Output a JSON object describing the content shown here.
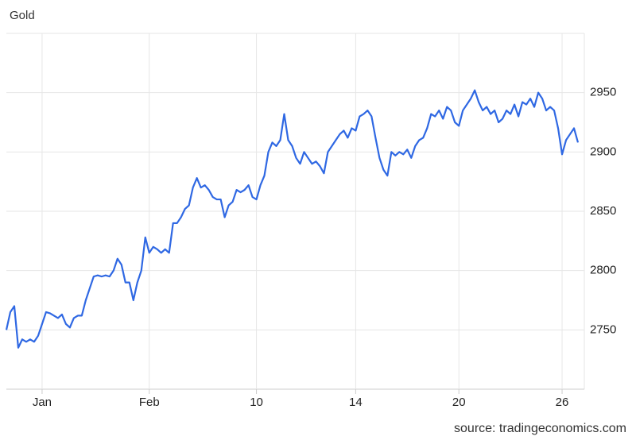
{
  "chart_data": {
    "type": "line",
    "title": "Gold",
    "source": "source: tradingeconomics.com",
    "color": "#2f68e3",
    "grid": true,
    "ylim": [
      2700,
      3000
    ],
    "yticks": [
      2750,
      2800,
      2850,
      2900,
      2950
    ],
    "categories": [
      null,
      null,
      null,
      null,
      null,
      null,
      null,
      null,
      null,
      "Jan",
      null,
      null,
      null,
      null,
      null,
      null,
      null,
      null,
      null,
      null,
      null,
      null,
      null,
      null,
      null,
      null,
      null,
      null,
      null,
      null,
      null,
      null,
      null,
      null,
      null,
      null,
      "Feb",
      null,
      null,
      null,
      null,
      null,
      null,
      null,
      null,
      null,
      null,
      null,
      null,
      null,
      null,
      null,
      null,
      null,
      null,
      null,
      null,
      null,
      null,
      null,
      null,
      null,
      null,
      "10",
      null,
      null,
      null,
      null,
      null,
      null,
      null,
      null,
      null,
      null,
      null,
      null,
      null,
      null,
      null,
      null,
      null,
      null,
      null,
      null,
      null,
      null,
      null,
      null,
      "14",
      null,
      null,
      null,
      null,
      null,
      null,
      null,
      null,
      null,
      null,
      null,
      null,
      null,
      null,
      null,
      null,
      null,
      null,
      null,
      null,
      null,
      null,
      null,
      null,
      null,
      "20",
      null,
      null,
      null,
      null,
      null,
      null,
      null,
      null,
      null,
      null,
      null,
      null,
      null,
      null,
      null,
      null,
      null,
      null,
      null,
      null,
      null,
      null,
      null,
      null,
      null,
      "26",
      null,
      null,
      null,
      null
    ],
    "values": [
      2750,
      2765,
      2770,
      2735,
      2742,
      2740,
      2742,
      2740,
      2745,
      2755,
      2765,
      2764,
      2762,
      2760,
      2763,
      2755,
      2752,
      2760,
      2762,
      2762,
      2775,
      2785,
      2795,
      2796,
      2795,
      2796,
      2795,
      2800,
      2810,
      2805,
      2790,
      2790,
      2775,
      2790,
      2800,
      2828,
      2815,
      2820,
      2818,
      2815,
      2818,
      2815,
      2840,
      2840,
      2845,
      2852,
      2855,
      2870,
      2878,
      2870,
      2872,
      2868,
      2862,
      2860,
      2860,
      2845,
      2855,
      2858,
      2868,
      2866,
      2868,
      2872,
      2862,
      2860,
      2872,
      2880,
      2900,
      2908,
      2905,
      2910,
      2932,
      2910,
      2905,
      2895,
      2890,
      2900,
      2895,
      2890,
      2892,
      2888,
      2882,
      2900,
      2905,
      2910,
      2915,
      2918,
      2912,
      2920,
      2918,
      2930,
      2932,
      2935,
      2930,
      2912,
      2895,
      2885,
      2880,
      2900,
      2897,
      2900,
      2898,
      2902,
      2895,
      2905,
      2910,
      2912,
      2920,
      2932,
      2930,
      2935,
      2928,
      2938,
      2935,
      2925,
      2922,
      2935,
      2940,
      2945,
      2952,
      2942,
      2935,
      2938,
      2932,
      2935,
      2925,
      2928,
      2935,
      2932,
      2940,
      2930,
      2942,
      2940,
      2945,
      2938,
      2950,
      2945,
      2935,
      2938,
      2935,
      2920,
      2898,
      2910,
      2915,
      2920,
      2908
    ]
  }
}
